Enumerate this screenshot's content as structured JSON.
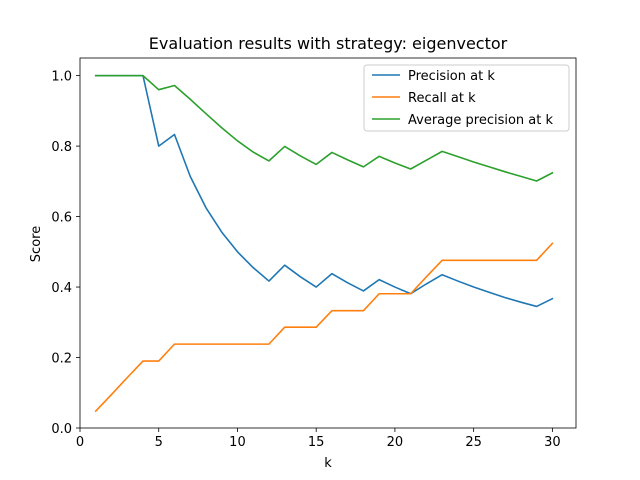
{
  "chart_data": {
    "type": "line",
    "title": "Evaluation results with strategy: eigenvector",
    "xlabel": "k",
    "ylabel": "Score",
    "xlim": [
      0,
      31.5
    ],
    "ylim": [
      0,
      1.05
    ],
    "xticks": [
      0,
      5,
      10,
      15,
      20,
      25,
      30
    ],
    "yticks": [
      0.0,
      0.2,
      0.4,
      0.6,
      0.8,
      1.0
    ],
    "xtick_labels": [
      "0",
      "5",
      "10",
      "15",
      "20",
      "25",
      "30"
    ],
    "ytick_labels": [
      "0.0",
      "0.2",
      "0.4",
      "0.6",
      "0.8",
      "1.0"
    ],
    "grid": false,
    "legend_position": "top-right",
    "series": [
      {
        "name": "Precision at k",
        "color": "#1f77b4",
        "x": [
          1,
          2,
          3,
          4,
          5,
          6,
          7,
          8,
          9,
          10,
          11,
          12,
          13,
          14,
          15,
          16,
          17,
          18,
          19,
          20,
          21,
          22,
          23,
          24,
          25,
          26,
          27,
          28,
          29,
          30
        ],
        "values": [
          1.0,
          1.0,
          1.0,
          1.0,
          0.8,
          0.833,
          0.714,
          0.625,
          0.556,
          0.5,
          0.455,
          0.417,
          0.462,
          0.429,
          0.4,
          0.438,
          0.412,
          0.389,
          0.421,
          0.4,
          0.381,
          0.409,
          0.435,
          0.417,
          0.4,
          0.385,
          0.37,
          0.357,
          0.345,
          0.367
        ]
      },
      {
        "name": "Recall at k",
        "color": "#ff7f0e",
        "x": [
          1,
          2,
          3,
          4,
          5,
          6,
          7,
          8,
          9,
          10,
          11,
          12,
          13,
          14,
          15,
          16,
          17,
          18,
          19,
          20,
          21,
          22,
          23,
          24,
          25,
          26,
          27,
          28,
          29,
          30
        ],
        "values": [
          0.048,
          0.095,
          0.143,
          0.19,
          0.19,
          0.238,
          0.238,
          0.238,
          0.238,
          0.238,
          0.238,
          0.238,
          0.286,
          0.286,
          0.286,
          0.333,
          0.333,
          0.333,
          0.381,
          0.381,
          0.381,
          0.429,
          0.476,
          0.476,
          0.476,
          0.476,
          0.476,
          0.476,
          0.476,
          0.524
        ]
      },
      {
        "name": "Average precision at k",
        "color": "#2ca02c",
        "x": [
          1,
          2,
          3,
          4,
          5,
          6,
          7,
          8,
          9,
          10,
          11,
          12,
          13,
          14,
          15,
          16,
          17,
          18,
          19,
          20,
          21,
          22,
          23,
          24,
          25,
          26,
          27,
          28,
          29,
          30
        ],
        "values": [
          1.0,
          1.0,
          1.0,
          1.0,
          0.96,
          0.972,
          0.933,
          0.892,
          0.852,
          0.815,
          0.783,
          0.758,
          0.799,
          0.772,
          0.748,
          0.782,
          0.761,
          0.741,
          0.771,
          0.752,
          0.735,
          0.76,
          0.785,
          0.77,
          0.755,
          0.741,
          0.727,
          0.714,
          0.701,
          0.724
        ]
      }
    ]
  }
}
